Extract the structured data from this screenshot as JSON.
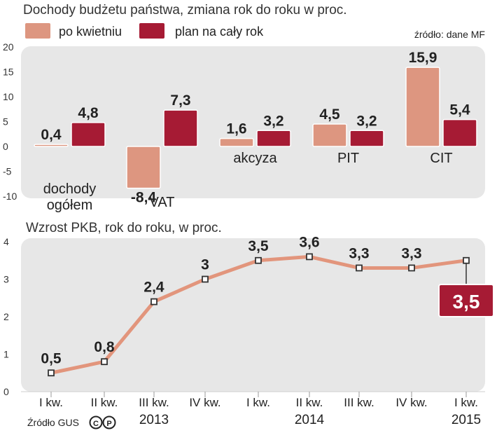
{
  "chart_data": [
    {
      "type": "bar",
      "title": "Dochody budżetu państwa, zmiana rok do roku w proc.",
      "source": "źródło: dane MF",
      "legend": [
        "po kwietniu",
        "plan na cały rok"
      ],
      "categories": [
        "dochody ogółem",
        "VAT",
        "akcyza",
        "PIT",
        "CIT"
      ],
      "category_lines": [
        [
          "dochody",
          "ogółem"
        ],
        [
          "VAT"
        ],
        [
          "akcyza"
        ],
        [
          "PIT"
        ],
        [
          "CIT"
        ]
      ],
      "series": [
        {
          "name": "po kwietniu",
          "values": [
            0.4,
            -8.4,
            1.6,
            4.5,
            15.9
          ],
          "labels": [
            "0,4",
            "-8,4",
            "1,6",
            "4,5",
            "15,9"
          ]
        },
        {
          "name": "plan na cały rok",
          "values": [
            4.8,
            7.3,
            3.2,
            3.2,
            5.4
          ],
          "labels": [
            "4,8",
            "7,3",
            "3,2",
            "3,2",
            "5,4"
          ]
        }
      ],
      "yticks": [
        20,
        15,
        10,
        5,
        0,
        -5,
        -10
      ],
      "ylim": [
        -10,
        20
      ],
      "colors": {
        "po kwietniu": "#dd9680",
        "plan na cały rok": "#a61b34",
        "panel": "#e7e7e7"
      }
    },
    {
      "type": "line",
      "title": "Wzrost PKB, rok do roku, w proc.",
      "source": "Źródło GUS",
      "x": [
        "I kw.",
        "II kw.",
        "III kw.",
        "IV kw.",
        "I kw.",
        "II kw.",
        "III kw.",
        "IV kw.",
        "I kw."
      ],
      "years": [
        {
          "label": "2013",
          "index": 2
        },
        {
          "label": "2014",
          "index": 5
        },
        {
          "label": "2015",
          "index": 8
        }
      ],
      "values": [
        0.5,
        0.8,
        2.4,
        3.0,
        3.5,
        3.6,
        3.3,
        3.3,
        3.5
      ],
      "labels": [
        "0,5",
        "0,8",
        "2,4",
        "3",
        "3,5",
        "3,6",
        "3,3",
        "3,3",
        "3,5"
      ],
      "yticks": [
        4,
        3,
        2,
        1,
        0
      ],
      "ylim": [
        0,
        4
      ],
      "colors": {
        "line": "#e2957c",
        "highlight": "#a61b34",
        "panel": "#e7e7e7"
      }
    }
  ]
}
